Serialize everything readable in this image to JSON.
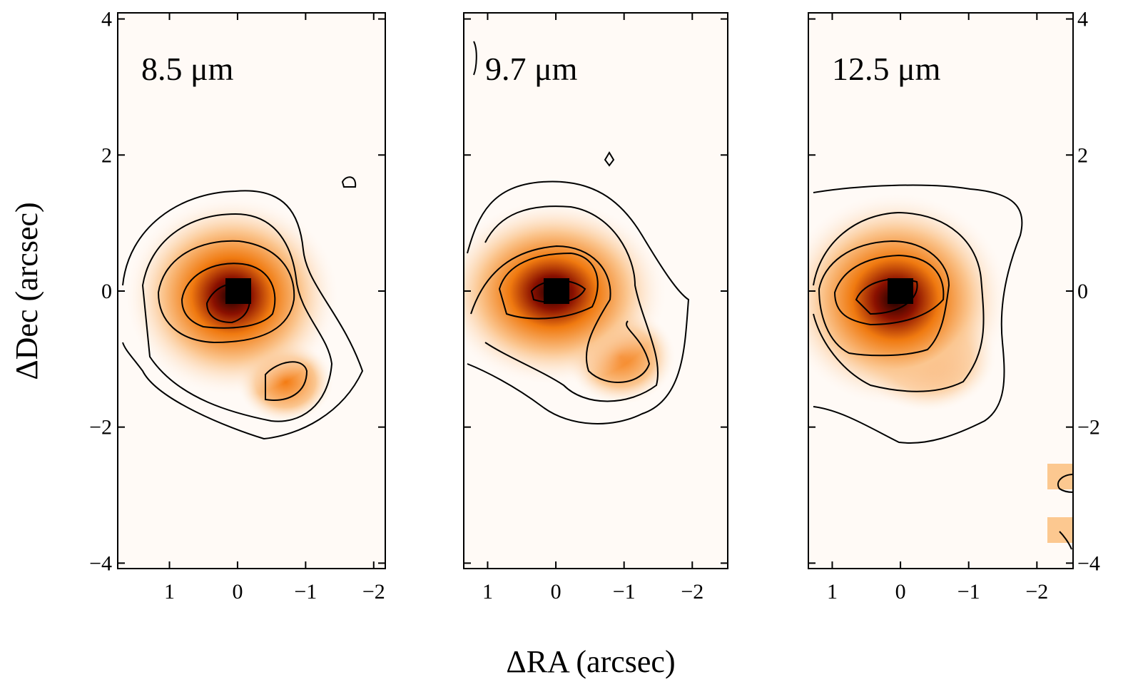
{
  "chart_data": [
    {
      "type": "heatmap",
      "title": "8.5 μm",
      "ylabel": "ΔDec (arcsec)",
      "ytick_labels": "left",
      "xlim": [
        1.76,
        -2.17
      ],
      "ylim": [
        -4.08,
        4.09
      ],
      "xticks": [
        1,
        0,
        {
          "value": -1,
          "label": "−1"
        },
        {
          "value": -2,
          "label": "−2"
        }
      ],
      "yticks": [
        {
          "value": -4,
          "label": "−4"
        },
        {
          "value": -2,
          "label": "−2"
        },
        0,
        2,
        4
      ]
    },
    {
      "type": "heatmap",
      "title": "9.7 μm",
      "xlabel": "ΔRA (arcsec)",
      "ytick_labels": "none",
      "xlim": [
        1.35,
        -2.52
      ],
      "ylim": [
        -4.08,
        4.09
      ],
      "xticks": [
        1,
        0,
        {
          "value": -1,
          "label": "−1"
        },
        {
          "value": -2,
          "label": "−2"
        }
      ],
      "yticks": [
        {
          "value": -4,
          "label": "−4"
        },
        {
          "value": -2,
          "label": "−2"
        },
        0,
        2,
        4
      ]
    },
    {
      "type": "heatmap",
      "title": "12.5 μm",
      "ytick_labels": "right",
      "xlim": [
        1.35,
        -2.53
      ],
      "ylim": [
        -4.08,
        4.09
      ],
      "xticks": [
        1,
        0,
        {
          "value": -1,
          "label": "−1"
        },
        {
          "value": -2,
          "label": "−2"
        }
      ],
      "yticks": [
        {
          "value": -4,
          "label": "−4"
        },
        {
          "value": -2,
          "label": "−2"
        },
        0,
        2,
        4
      ]
    }
  ]
}
